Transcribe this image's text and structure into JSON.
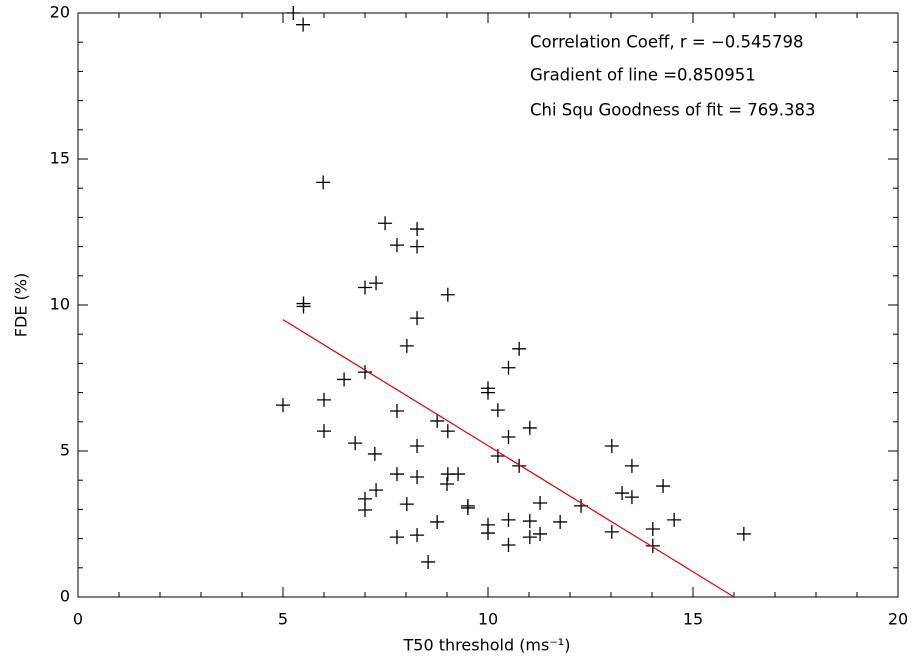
{
  "chart_data": {
    "type": "scatter",
    "xlabel": "T50 threshold (ms⁻¹)",
    "ylabel": "FDE (%)",
    "annotations": [
      "Correlation Coeff, r = −0.545798",
      "Gradient of line =0.850951",
      "Chi Squ Goodness of fit =  769.383"
    ],
    "xlim": [
      0,
      20
    ],
    "ylim": [
      0,
      20
    ],
    "xticks": [
      0,
      5,
      10,
      15,
      20
    ],
    "yticks": [
      0,
      5,
      10,
      15,
      20
    ],
    "xminorticks": [
      1,
      2,
      3,
      4,
      6,
      7,
      8,
      9,
      11,
      12,
      13,
      14,
      16,
      17,
      18,
      19
    ],
    "yminorticks": [
      1,
      2,
      3,
      4,
      6,
      7,
      8,
      9,
      11,
      12,
      13,
      14,
      16,
      17,
      18,
      19
    ],
    "color": "#000000",
    "x": [
      5.25,
      5.49,
      5.98,
      5.5,
      5.5,
      7.49,
      7.78,
      7.27,
      7.0,
      8.27,
      8.27,
      9.02,
      8.27,
      8.02,
      10.76,
      10.5,
      6.49,
      7.0,
      10.0,
      10.0,
      5.0,
      6.0,
      7.78,
      10.24,
      8.76,
      6.0,
      9.02,
      11.02,
      10.5,
      6.76,
      8.27,
      13.02,
      7.24,
      10.24,
      10.76,
      13.51,
      7.78,
      9.02,
      9.27,
      8.27,
      9.0,
      14.27,
      7.27,
      13.27,
      13.51,
      7.0,
      8.02,
      9.51,
      9.51,
      11.27,
      12.27,
      7.0,
      8.76,
      10.5,
      11.02,
      11.76,
      14.54,
      10.0,
      14.02,
      10.0,
      11.02,
      11.27,
      13.02,
      8.27,
      16.24,
      7.78,
      10.5,
      14.02,
      8.54
    ],
    "y": [
      20.0,
      19.6,
      14.2,
      10.05,
      9.95,
      12.8,
      12.05,
      10.75,
      10.6,
      12.6,
      12.0,
      10.35,
      9.55,
      8.6,
      8.5,
      7.85,
      7.45,
      7.7,
      7.15,
      7.0,
      6.57,
      6.75,
      6.37,
      6.4,
      6.03,
      5.68,
      5.68,
      5.79,
      5.48,
      5.27,
      5.17,
      5.17,
      4.9,
      4.83,
      4.49,
      4.49,
      4.21,
      4.21,
      4.21,
      4.11,
      3.87,
      3.8,
      3.66,
      3.56,
      3.42,
      3.36,
      3.18,
      3.12,
      3.05,
      3.22,
      3.12,
      2.98,
      2.57,
      2.64,
      2.6,
      2.57,
      2.64,
      2.47,
      2.33,
      2.19,
      2.05,
      2.16,
      2.23,
      2.12,
      2.16,
      2.05,
      1.78,
      1.75,
      1.2
    ],
    "fit": {
      "color": "#e00000",
      "x": [
        5,
        16
      ],
      "y": [
        9.5,
        0
      ]
    }
  }
}
